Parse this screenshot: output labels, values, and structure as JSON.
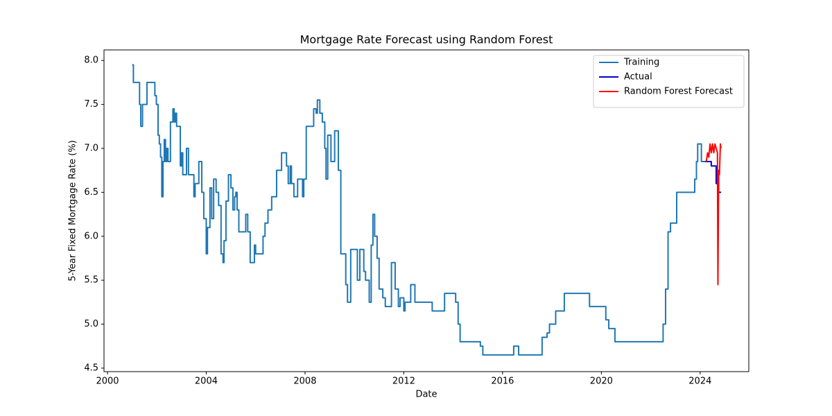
{
  "chart_data": {
    "type": "line",
    "title": "Mortgage Rate Forecast using Random Forest",
    "x_label": "Date",
    "y_label": "5-Year Fixed Mortgage Rate (%)",
    "xlim": [
      1999.86,
      2025.97
    ],
    "xticks": [
      2000,
      2004,
      2008,
      2012,
      2016,
      2020,
      2024
    ],
    "ylim": [
      4.46,
      8.12
    ],
    "yticks": [
      4.5,
      {
        "value": 5,
        "label": "5.0"
      },
      5.5,
      {
        "value": 6,
        "label": "6.0"
      },
      6.5,
      {
        "value": 7,
        "label": "7.0"
      },
      7.5,
      {
        "value": 8,
        "label": "8.0"
      }
    ],
    "legend": "upper right",
    "series": [
      {
        "name": "Training",
        "color": "#1f77b4",
        "drawstyle": "steps-post",
        "x": [
          2001.0,
          2001.05,
          2001.3,
          2001.35,
          2001.42,
          2001.6,
          2001.92,
          2001.98,
          2002.05,
          2002.1,
          2002.15,
          2002.2,
          2002.25,
          2002.3,
          2002.35,
          2002.4,
          2002.45,
          2002.55,
          2002.65,
          2002.7,
          2002.75,
          2002.8,
          2002.95,
          2003.0,
          2003.05,
          2003.2,
          2003.28,
          2003.5,
          2003.55,
          2003.7,
          2003.82,
          2003.9,
          2004.0,
          2004.05,
          2004.15,
          2004.22,
          2004.3,
          2004.4,
          2004.5,
          2004.6,
          2004.68,
          2004.72,
          2004.8,
          2004.9,
          2005.0,
          2005.08,
          2005.15,
          2005.2,
          2005.25,
          2005.32,
          2005.6,
          2005.68,
          2005.78,
          2005.95,
          2006.0,
          2006.3,
          2006.38,
          2006.5,
          2006.65,
          2006.85,
          2007.05,
          2007.25,
          2007.32,
          2007.4,
          2007.45,
          2007.55,
          2007.7,
          2007.9,
          2007.95,
          2008.05,
          2008.35,
          2008.45,
          2008.5,
          2008.6,
          2008.7,
          2008.8,
          2008.85,
          2008.92,
          2009.05,
          2009.2,
          2009.35,
          2009.45,
          2009.65,
          2009.72,
          2009.85,
          2010.12,
          2010.22,
          2010.38,
          2010.45,
          2010.6,
          2010.68,
          2010.75,
          2010.82,
          2010.92,
          2011.0,
          2011.15,
          2011.25,
          2011.5,
          2011.65,
          2011.78,
          2011.85,
          2012.0,
          2012.05,
          2012.28,
          2012.45,
          2013.15,
          2013.65,
          2014.1,
          2014.2,
          2014.28,
          2015.1,
          2015.2,
          2016.45,
          2016.65,
          2017.6,
          2017.8,
          2017.9,
          2018.15,
          2018.5,
          2019.52,
          2020.18,
          2020.3,
          2020.55,
          2022.5,
          2022.6,
          2022.7,
          2022.8,
          2023.05,
          2023.78,
          2023.85,
          2023.9,
          2024.05,
          2024.22
        ],
        "values": [
          7.95,
          7.75,
          7.5,
          7.25,
          7.5,
          7.75,
          7.6,
          7.5,
          7.15,
          7.05,
          6.9,
          6.45,
          6.85,
          7.1,
          6.85,
          7.0,
          6.85,
          7.3,
          7.45,
          7.3,
          7.4,
          7.25,
          6.8,
          6.95,
          6.7,
          7.0,
          6.7,
          6.45,
          6.6,
          6.85,
          6.5,
          6.2,
          5.8,
          6.1,
          6.55,
          6.2,
          6.65,
          6.5,
          6.35,
          5.8,
          5.7,
          5.95,
          6.4,
          6.7,
          6.55,
          6.3,
          6.45,
          6.5,
          6.3,
          6.05,
          6.25,
          6.05,
          5.7,
          5.9,
          5.8,
          6.0,
          6.15,
          6.3,
          6.45,
          6.75,
          6.95,
          6.8,
          6.6,
          6.8,
          6.6,
          6.45,
          6.65,
          6.45,
          6.65,
          7.25,
          7.45,
          7.4,
          7.55,
          7.4,
          7.3,
          7.0,
          6.65,
          7.15,
          6.85,
          7.2,
          6.75,
          5.8,
          5.45,
          5.25,
          5.85,
          5.5,
          5.85,
          5.6,
          5.5,
          5.25,
          5.9,
          6.25,
          6.0,
          5.75,
          5.4,
          5.3,
          5.2,
          5.7,
          5.4,
          5.2,
          5.3,
          5.15,
          5.25,
          5.45,
          5.25,
          5.15,
          5.35,
          5.25,
          5.0,
          4.8,
          4.75,
          4.65,
          4.75,
          4.65,
          4.85,
          4.9,
          5.0,
          5.15,
          5.35,
          5.2,
          5.05,
          4.95,
          4.8,
          5.0,
          5.4,
          6.05,
          6.15,
          6.5,
          6.65,
          6.85,
          7.05,
          6.85,
          6.85
        ]
      },
      {
        "name": "Actual",
        "color": "#0000cc",
        "drawstyle": "steps-post",
        "x": [
          2024.2,
          2024.45,
          2024.65,
          2024.7,
          2024.75,
          2024.85
        ],
        "values": [
          6.85,
          6.8,
          6.6,
          6.7,
          6.5,
          6.5
        ]
      },
      {
        "name": "Random Forest Forecast",
        "color": "#ff0000",
        "x": [
          2024.25,
          2024.3,
          2024.35,
          2024.4,
          2024.45,
          2024.5,
          2024.55,
          2024.6,
          2024.65,
          2024.7,
          2024.72,
          2024.75,
          2024.78,
          2024.82,
          2024.84
        ],
        "values": [
          6.85,
          6.95,
          6.9,
          7.05,
          6.95,
          7.05,
          6.95,
          7.05,
          7.0,
          6.95,
          5.45,
          6.75,
          6.7,
          7.05,
          7.0
        ]
      }
    ]
  }
}
